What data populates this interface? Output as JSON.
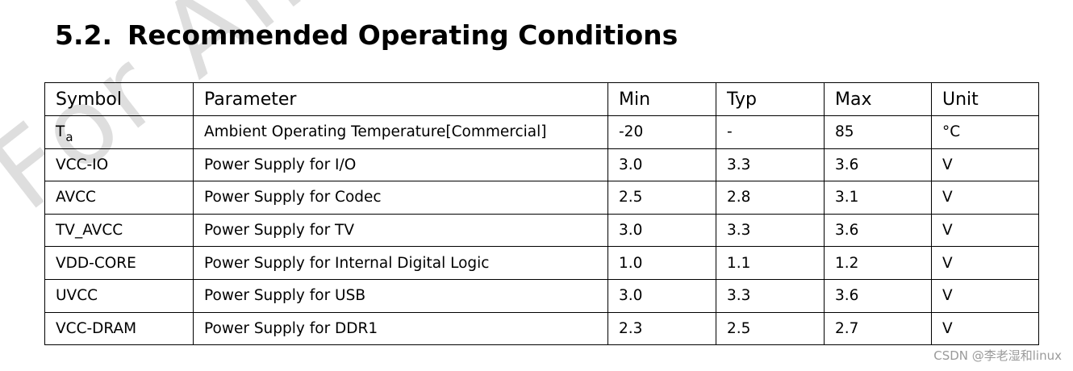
{
  "watermark": "For Allwinner Tech",
  "section": {
    "number": "5.2.",
    "title": "Recommended Operating Conditions"
  },
  "table": {
    "headers": {
      "symbol": "Symbol",
      "parameter": "Parameter",
      "min": "Min",
      "typ": "Typ",
      "max": "Max",
      "unit": "Unit"
    },
    "rows": [
      {
        "symbol": "T",
        "symbol_sub": "a",
        "parameter": "Ambient Operating Temperature[Commercial]",
        "min": "-20",
        "typ": "-",
        "max": "85",
        "unit": "°C"
      },
      {
        "symbol": "VCC-IO",
        "parameter": "Power Supply for I/O",
        "min": "3.0",
        "typ": "3.3",
        "max": "3.6",
        "unit": "V"
      },
      {
        "symbol": "AVCC",
        "parameter": "Power Supply for Codec",
        "min": "2.5",
        "typ": "2.8",
        "max": "3.1",
        "unit": "V"
      },
      {
        "symbol": "TV_AVCC",
        "parameter": "Power Supply for TV",
        "min": "3.0",
        "typ": "3.3",
        "max": "3.6",
        "unit": "V"
      },
      {
        "symbol": "VDD-CORE",
        "parameter": "Power Supply for Internal Digital Logic",
        "min": "1.0",
        "typ": "1.1",
        "max": "1.2",
        "unit": "V"
      },
      {
        "symbol": "UVCC",
        "parameter": "Power Supply for USB",
        "min": "3.0",
        "typ": "3.3",
        "max": "3.6",
        "unit": "V"
      },
      {
        "symbol": "VCC-DRAM",
        "parameter": "Power Supply for DDR1",
        "min": "2.3",
        "typ": "2.5",
        "max": "2.7",
        "unit": "V"
      }
    ]
  },
  "credit": "CSDN @李老湿和linux"
}
